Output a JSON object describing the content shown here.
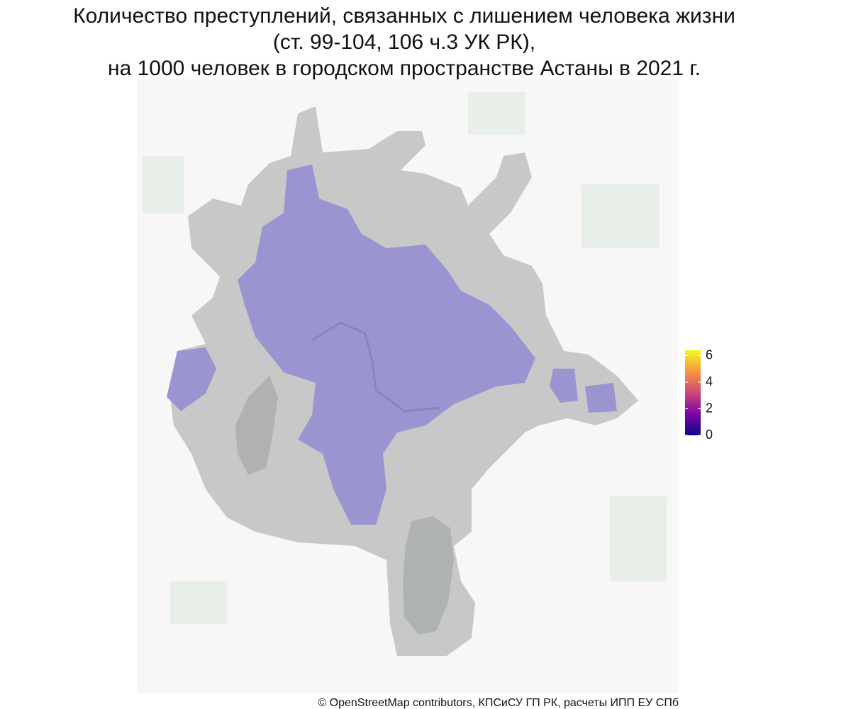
{
  "title": [
    "Количество преступлений, связанных с лишением человека жизни",
    "(ст. 99-104, 106 ч.3 УК РК),",
    "на 1000 человек в городском пространстве Астаны в 2021 г."
  ],
  "legend": {
    "range": [
      0,
      6.4
    ],
    "ticks": [
      0,
      2,
      4,
      6
    ],
    "colors": [
      "#0d0887",
      "#7e03a8",
      "#cc4778",
      "#f89540",
      "#f0f921"
    ]
  },
  "attribution": "© OpenStreetMap contributors, КПСиСУ ГП РК, расчеты ИПП ЕУ СПб"
}
